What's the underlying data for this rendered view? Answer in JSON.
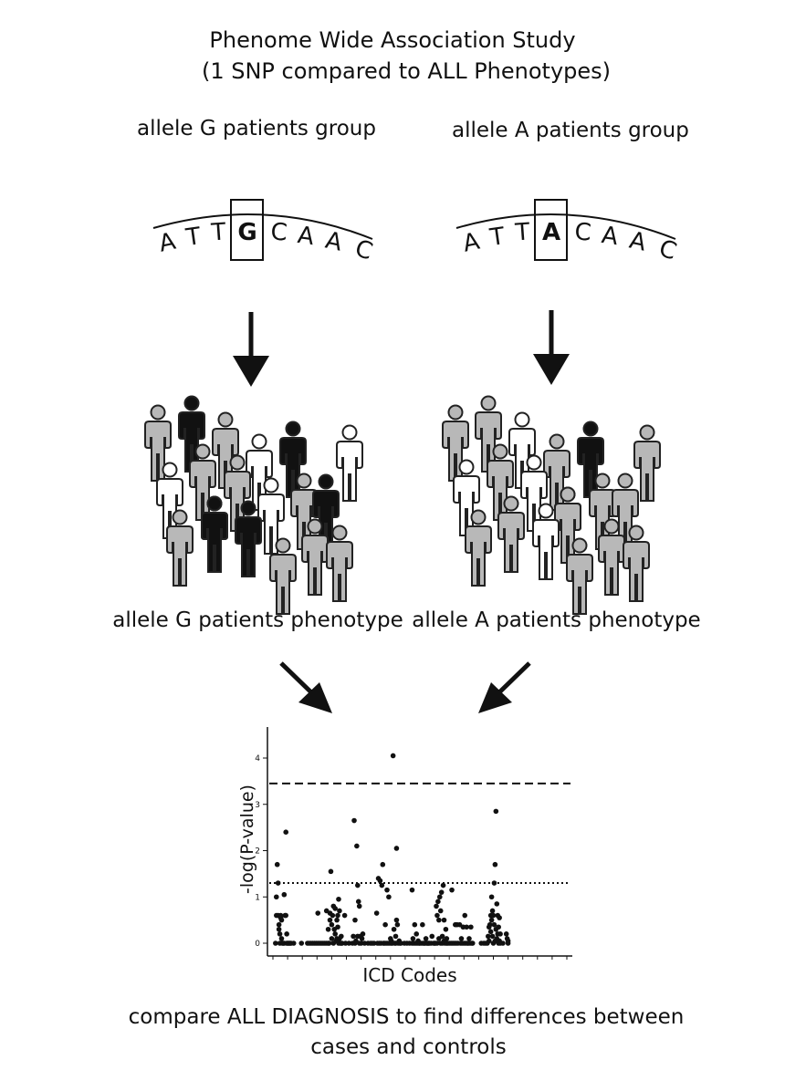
{
  "title": {
    "line1": "Phenome Wide Association Study",
    "line2": "(1 SNP compared to ALL Phenotypes)"
  },
  "groups": {
    "g": {
      "label": "allele G patients group",
      "sequence_left": [
        "A",
        "T",
        "T"
      ],
      "allele": "G",
      "sequence_right": [
        "C",
        "A",
        "A",
        "C"
      ],
      "phenotype_label": "allele G patients phenotype"
    },
    "a": {
      "label": "allele A patients group",
      "sequence_left": [
        "A",
        "T",
        "T"
      ],
      "allele": "A",
      "sequence_right": [
        "C",
        "A",
        "A",
        "C"
      ],
      "phenotype_label": "allele A patients phenotype"
    }
  },
  "colors": {
    "affected": "#111111",
    "carrier": "#b8b8b8",
    "unaffected": "#ffffff",
    "outline": "#222222"
  },
  "people": {
    "g": [
      "carrier",
      "affected",
      "carrier",
      "carrier",
      "unaffected",
      "affected",
      "unaffected",
      "unaffected",
      "carrier",
      "carrier",
      "carrier",
      "affected",
      "affected",
      "carrier",
      "unaffected",
      "carrier",
      "carrier",
      "carrier",
      "affected"
    ],
    "a": [
      "carrier",
      "carrier",
      "unaffected",
      "carrier",
      "carrier",
      "affected",
      "carrier",
      "unaffected",
      "carrier",
      "carrier",
      "carrier",
      "carrier",
      "unaffected",
      "unaffected",
      "carrier",
      "carrier",
      "carrier",
      "carrier",
      "carrier"
    ]
  },
  "chart_data": {
    "type": "scatter",
    "title": "",
    "xlabel": "ICD Codes",
    "ylabel": "-log(P-value)",
    "ylim": [
      0,
      4.3
    ],
    "yticks": [
      0,
      1,
      2,
      3,
      4
    ],
    "x_range": [
      0,
      340
    ],
    "reference_lines": [
      {
        "style": "dashed",
        "y": 3.45
      },
      {
        "style": "dotted",
        "y": 1.3
      }
    ],
    "x_ticks": [
      0,
      17,
      34,
      51,
      68,
      85,
      102,
      119,
      136,
      153,
      170,
      187,
      204,
      221,
      238,
      255,
      272,
      289,
      306,
      323,
      340
    ],
    "points": [
      [
        3,
        0
      ],
      [
        4,
        0.6
      ],
      [
        4,
        1
      ],
      [
        5,
        1.7
      ],
      [
        6,
        1.3
      ],
      [
        6,
        0.6
      ],
      [
        7,
        0.4
      ],
      [
        7,
        0.3
      ],
      [
        8,
        0.2
      ],
      [
        8,
        0
      ],
      [
        9,
        0.6
      ],
      [
        9,
        0.55
      ],
      [
        10,
        0.5
      ],
      [
        10,
        0.1
      ],
      [
        11,
        0
      ],
      [
        12,
        0
      ],
      [
        13,
        1.05
      ],
      [
        13,
        0
      ],
      [
        14,
        0.6
      ],
      [
        15,
        2.4
      ],
      [
        15,
        0.6
      ],
      [
        16,
        0.2
      ],
      [
        16,
        0
      ],
      [
        17,
        0
      ],
      [
        18,
        0
      ],
      [
        19,
        0
      ],
      [
        20,
        0
      ],
      [
        21,
        0
      ],
      [
        24,
        0
      ],
      [
        33,
        0
      ],
      [
        40,
        0
      ],
      [
        42,
        0
      ],
      [
        44,
        0
      ],
      [
        46,
        0
      ],
      [
        48,
        0
      ],
      [
        50,
        0
      ],
      [
        52,
        0.65
      ],
      [
        52,
        0
      ],
      [
        54,
        0
      ],
      [
        56,
        0
      ],
      [
        58,
        0
      ],
      [
        60,
        0
      ],
      [
        62,
        0
      ],
      [
        62,
        0.7
      ],
      [
        64,
        0.3
      ],
      [
        64,
        0
      ],
      [
        65,
        0
      ],
      [
        66,
        0.65
      ],
      [
        66,
        0.5
      ],
      [
        67,
        1.55
      ],
      [
        68,
        0.4
      ],
      [
        68,
        0.1
      ],
      [
        69,
        0.6
      ],
      [
        70,
        0.8
      ],
      [
        70,
        0
      ],
      [
        71,
        0.3
      ],
      [
        72,
        0.75
      ],
      [
        72,
        0.2
      ],
      [
        73,
        0.05
      ],
      [
        74,
        0.1
      ],
      [
        74,
        0.5
      ],
      [
        75,
        0.6
      ],
      [
        75,
        0.35
      ],
      [
        76,
        0.95
      ],
      [
        76,
        0
      ],
      [
        77,
        0.7
      ],
      [
        77,
        0.1
      ],
      [
        78,
        0
      ],
      [
        79,
        0.15
      ],
      [
        79,
        0
      ],
      [
        80,
        0
      ],
      [
        83,
        0.6
      ],
      [
        84,
        0
      ],
      [
        88,
        0
      ],
      [
        92,
        0
      ],
      [
        93,
        0.15
      ],
      [
        94,
        2.65
      ],
      [
        95,
        0.5
      ],
      [
        95,
        0
      ],
      [
        96,
        0.05
      ],
      [
        97,
        2.1
      ],
      [
        98,
        0.15
      ],
      [
        98,
        1.25
      ],
      [
        99,
        0.9
      ],
      [
        100,
        0.8
      ],
      [
        100,
        0
      ],
      [
        101,
        0.15
      ],
      [
        102,
        0
      ],
      [
        103,
        0.1
      ],
      [
        104,
        0.2
      ],
      [
        106,
        0
      ],
      [
        110,
        0
      ],
      [
        113,
        0
      ],
      [
        115,
        0
      ],
      [
        117,
        0
      ],
      [
        120,
        0.65
      ],
      [
        121,
        0
      ],
      [
        122,
        1.4
      ],
      [
        123,
        0
      ],
      [
        124,
        1.35
      ],
      [
        125,
        0
      ],
      [
        126,
        1.25
      ],
      [
        127,
        1.7
      ],
      [
        128,
        0
      ],
      [
        129,
        0
      ],
      [
        130,
        0.4
      ],
      [
        131,
        0
      ],
      [
        132,
        1.15
      ],
      [
        133,
        0
      ],
      [
        134,
        1.0
      ],
      [
        135,
        0
      ],
      [
        136,
        0.1
      ],
      [
        137,
        0.05
      ],
      [
        137,
        0
      ],
      [
        138,
        0
      ],
      [
        139,
        4.05
      ],
      [
        140,
        0.3
      ],
      [
        141,
        0
      ],
      [
        142,
        0.15
      ],
      [
        142,
        0
      ],
      [
        143,
        2.05
      ],
      [
        143,
        0.5
      ],
      [
        144,
        0.4
      ],
      [
        145,
        0
      ],
      [
        146,
        0.05
      ],
      [
        147,
        0
      ],
      [
        148,
        0
      ],
      [
        152,
        0
      ],
      [
        155,
        0
      ],
      [
        158,
        0
      ],
      [
        161,
        1.15
      ],
      [
        161,
        0
      ],
      [
        162,
        0.1
      ],
      [
        163,
        0
      ],
      [
        164,
        0.4
      ],
      [
        165,
        0
      ],
      [
        166,
        0.2
      ],
      [
        167,
        0
      ],
      [
        168,
        0.05
      ],
      [
        169,
        0
      ],
      [
        170,
        0
      ],
      [
        172,
        0
      ],
      [
        173,
        0.4
      ],
      [
        174,
        0
      ],
      [
        175,
        0
      ],
      [
        176,
        0
      ],
      [
        177,
        0.1
      ],
      [
        178,
        0
      ],
      [
        179,
        0
      ],
      [
        180,
        0
      ],
      [
        181,
        0
      ],
      [
        183,
        0
      ],
      [
        184,
        0.15
      ],
      [
        186,
        0
      ],
      [
        187,
        0
      ],
      [
        188,
        0
      ],
      [
        189,
        0.8
      ],
      [
        190,
        0.6
      ],
      [
        190,
        0
      ],
      [
        191,
        0.9
      ],
      [
        192,
        0.5
      ],
      [
        192,
        0.1
      ],
      [
        193,
        1.0
      ],
      [
        194,
        0.7
      ],
      [
        194,
        0
      ],
      [
        195,
        1.1
      ],
      [
        196,
        0.15
      ],
      [
        196,
        0
      ],
      [
        197,
        1.25
      ],
      [
        198,
        0.5
      ],
      [
        198,
        0.05
      ],
      [
        199,
        0
      ],
      [
        200,
        0.3
      ],
      [
        201,
        0.1
      ],
      [
        201,
        0
      ],
      [
        202,
        0
      ],
      [
        204,
        0
      ],
      [
        206,
        0
      ],
      [
        207,
        1.15
      ],
      [
        208,
        0
      ],
      [
        210,
        0
      ],
      [
        211,
        0.4
      ],
      [
        212,
        0
      ],
      [
        213,
        0.4
      ],
      [
        214,
        0
      ],
      [
        216,
        0.4
      ],
      [
        217,
        0
      ],
      [
        218,
        0.1
      ],
      [
        219,
        0
      ],
      [
        220,
        0.35
      ],
      [
        221,
        0
      ],
      [
        222,
        0.6
      ],
      [
        223,
        0
      ],
      [
        224,
        0.35
      ],
      [
        225,
        0
      ],
      [
        226,
        0
      ],
      [
        227,
        0.1
      ],
      [
        228,
        0
      ],
      [
        229,
        0.35
      ],
      [
        230,
        0
      ],
      [
        231,
        0
      ],
      [
        241,
        0
      ],
      [
        244,
        0
      ],
      [
        246,
        0
      ],
      [
        248,
        0
      ],
      [
        249,
        0.15
      ],
      [
        250,
        0.35
      ],
      [
        250,
        0.05
      ],
      [
        251,
        0.4
      ],
      [
        252,
        0.6
      ],
      [
        252,
        0.25
      ],
      [
        253,
        1.0
      ],
      [
        253,
        0.5
      ],
      [
        254,
        0.7
      ],
      [
        254,
        0.15
      ],
      [
        255,
        0.6
      ],
      [
        255,
        0
      ],
      [
        256,
        1.3
      ],
      [
        256,
        0.4
      ],
      [
        257,
        1.7
      ],
      [
        257,
        0.05
      ],
      [
        258,
        2.85
      ],
      [
        258,
        0.3
      ],
      [
        259,
        0.85
      ],
      [
        259,
        0.1
      ],
      [
        260,
        0.6
      ],
      [
        260,
        0.2
      ],
      [
        261,
        0.35
      ],
      [
        261,
        0
      ],
      [
        262,
        0.55
      ],
      [
        262,
        0.05
      ],
      [
        263,
        0.2
      ],
      [
        263,
        0
      ],
      [
        266,
        0
      ],
      [
        270,
        0.2
      ],
      [
        271,
        0.1
      ],
      [
        272,
        0
      ],
      [
        272,
        0.05
      ]
    ]
  }
}
